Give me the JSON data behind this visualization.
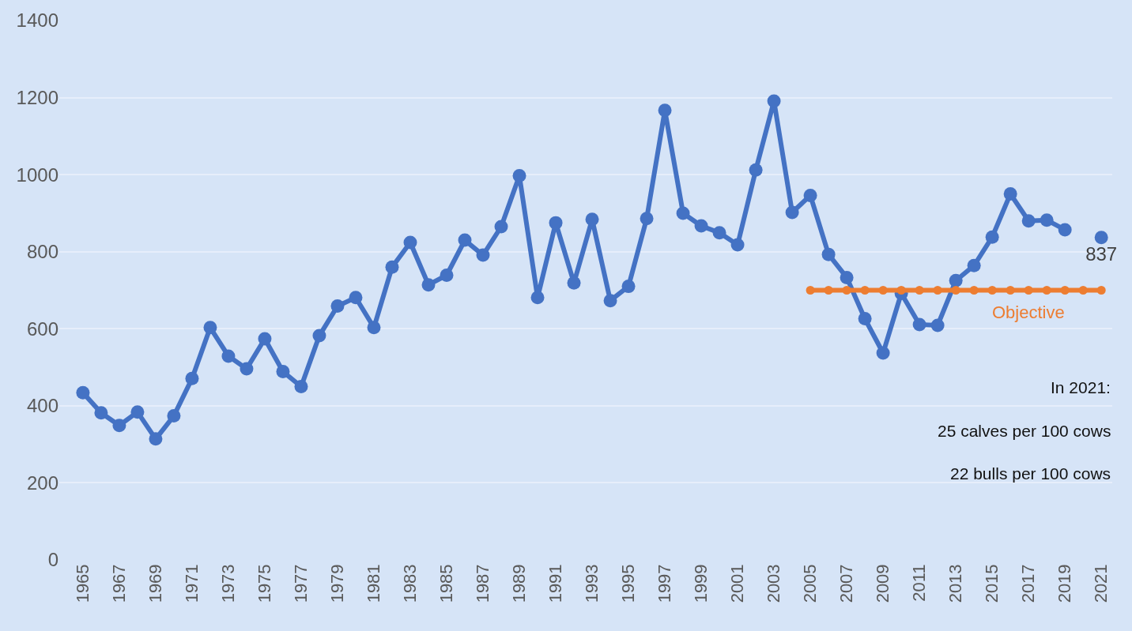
{
  "chart_data": {
    "type": "line",
    "categories": [
      "1965",
      null,
      "1967",
      null,
      "1969",
      null,
      "1971",
      null,
      "1973",
      null,
      "1975",
      null,
      "1977",
      null,
      "1979",
      null,
      "1981",
      null,
      "1983",
      null,
      "1985",
      null,
      "1987",
      null,
      "1989",
      null,
      "1991",
      null,
      "1993",
      null,
      "1995",
      null,
      "1997",
      null,
      "1999",
      null,
      "2001",
      null,
      "2003",
      null,
      "2005",
      null,
      "2007",
      null,
      "2009",
      null,
      "2011",
      null,
      "2013",
      null,
      "2015",
      null,
      "2017",
      null,
      "2019",
      null,
      "2021"
    ],
    "series": [
      {
        "color": "#4472c4",
        "values": [
          434,
          382,
          349,
          384,
          314,
          374,
          471,
          603,
          529,
          496,
          574,
          489,
          450,
          582,
          659,
          681,
          603,
          760,
          824,
          714,
          739,
          830,
          791,
          865,
          997,
          681,
          875,
          719,
          884,
          673,
          710,
          886,
          1167,
          900,
          867,
          849,
          818,
          1012,
          1191,
          902,
          946,
          793,
          733,
          626,
          537,
          692,
          611,
          609,
          725,
          764,
          838,
          950,
          880,
          882,
          857,
          null,
          837
        ],
        "value_labels": [
          null,
          null,
          null,
          null,
          null,
          null,
          null,
          null,
          null,
          null,
          null,
          null,
          null,
          null,
          null,
          null,
          null,
          null,
          null,
          null,
          null,
          null,
          null,
          null,
          null,
          null,
          null,
          null,
          null,
          null,
          null,
          null,
          null,
          null,
          null,
          null,
          null,
          null,
          null,
          null,
          null,
          null,
          null,
          null,
          null,
          null,
          null,
          null,
          null,
          null,
          null,
          null,
          null,
          null,
          null,
          null,
          "837"
        ]
      },
      {
        "name": "Objective",
        "color": "#ed7d31",
        "values": [
          null,
          null,
          null,
          null,
          null,
          null,
          null,
          null,
          null,
          null,
          null,
          null,
          null,
          null,
          null,
          null,
          null,
          null,
          null,
          null,
          null,
          null,
          null,
          null,
          null,
          null,
          null,
          null,
          null,
          null,
          null,
          null,
          null,
          null,
          null,
          null,
          null,
          null,
          null,
          null,
          700,
          700,
          700,
          700,
          700,
          700,
          700,
          700,
          700,
          700,
          700,
          700,
          700,
          700,
          700,
          700,
          700
        ]
      }
    ],
    "ylim": [
      0,
      1400
    ],
    "yticks": [
      0,
      200,
      400,
      600,
      800,
      1000,
      1200,
      1400
    ],
    "grid": "y",
    "legend": false,
    "marker": "circle",
    "line_style": "solid",
    "annotations": [
      "In 2021:",
      "25 calves per 100 cows",
      "22 bulls per 100 cows"
    ]
  }
}
